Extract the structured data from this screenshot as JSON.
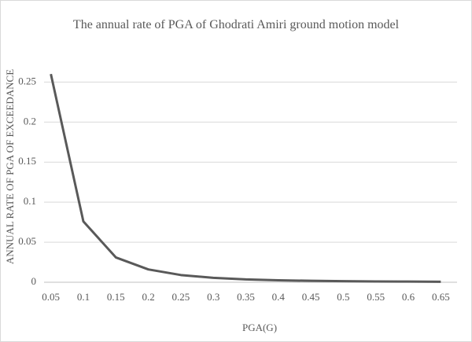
{
  "chart_data": {
    "type": "line",
    "title": "The annual rate of PGA of Ghodrati Amiri ground motion model",
    "x_label": "PGA(G)",
    "y_label": "ANNUAL RATE OF PGA OF EXCEEDANCE",
    "categories": [
      "0.05",
      "0.1",
      "0.15",
      "0.2",
      "0.25",
      "0.3",
      "0.35",
      "0.4",
      "0.45",
      "0.5",
      "0.55",
      "0.6",
      "0.65"
    ],
    "series": [
      {
        "name": "Annual rate",
        "color": "#595959",
        "values": [
          0.26,
          0.076,
          0.031,
          0.016,
          0.009,
          0.0055,
          0.0035,
          0.0025,
          0.0018,
          0.0013,
          0.001,
          0.0008,
          0.0006
        ]
      }
    ],
    "ylim": [
      0,
      0.27
    ],
    "yticks": [
      0,
      0.05,
      0.1,
      0.15,
      0.2,
      0.25
    ],
    "grid": true
  }
}
